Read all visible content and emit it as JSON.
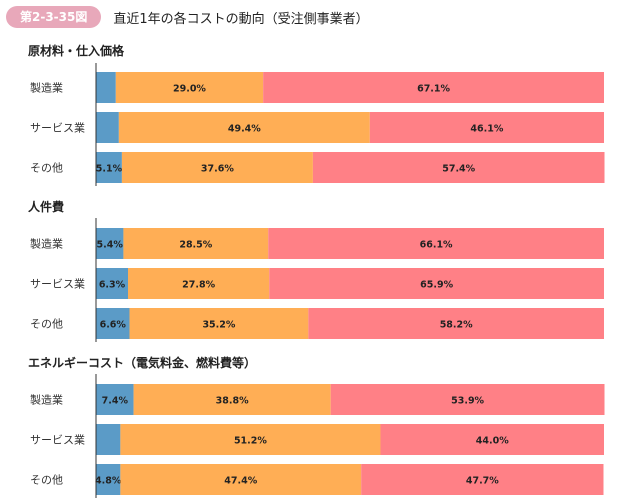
{
  "figure": {
    "badge": "第2-3-35図",
    "title": "直近1年の各コストの動向（受注側事業者）"
  },
  "colors": {
    "segment_1": "#5b9bc7",
    "segment_2": "#ffae55",
    "segment_3": "#ff8086",
    "badge": "#e8a8ba",
    "axis": "#333333"
  },
  "chart_data": [
    {
      "type": "bar",
      "stacked": true,
      "orientation": "horizontal",
      "title": "原材料・仕入価格",
      "categories": [
        "製造業",
        "サービス業",
        "その他"
      ],
      "series": [
        {
          "values": [
            3.9,
            4.5,
            5.1
          ],
          "labels": [
            "",
            "",
            "5.1%"
          ]
        },
        {
          "values": [
            29.0,
            49.4,
            37.6
          ],
          "labels": [
            "29.0%",
            "49.4%",
            "37.6%"
          ]
        },
        {
          "values": [
            67.1,
            46.1,
            57.4
          ],
          "labels": [
            "67.1%",
            "46.1%",
            "57.4%"
          ]
        }
      ],
      "xlim": [
        0,
        100
      ]
    },
    {
      "type": "bar",
      "stacked": true,
      "orientation": "horizontal",
      "title": "人件費",
      "categories": [
        "製造業",
        "サービス業",
        "その他"
      ],
      "series": [
        {
          "values": [
            5.4,
            6.3,
            6.6
          ],
          "labels": [
            "5.4%",
            "6.3%",
            "6.6%"
          ]
        },
        {
          "values": [
            28.5,
            27.8,
            35.2
          ],
          "labels": [
            "28.5%",
            "27.8%",
            "35.2%"
          ]
        },
        {
          "values": [
            66.1,
            65.9,
            58.2
          ],
          "labels": [
            "66.1%",
            "65.9%",
            "58.2%"
          ]
        }
      ],
      "xlim": [
        0,
        100
      ]
    },
    {
      "type": "bar",
      "stacked": true,
      "orientation": "horizontal",
      "title": "エネルギーコスト（電気料金、燃料費等）",
      "categories": [
        "製造業",
        "サービス業",
        "その他"
      ],
      "series": [
        {
          "values": [
            7.4,
            4.8,
            4.8
          ],
          "labels": [
            "7.4%",
            "",
            "4.8%"
          ]
        },
        {
          "values": [
            38.8,
            51.2,
            47.4
          ],
          "labels": [
            "38.8%",
            "51.2%",
            "47.4%"
          ]
        },
        {
          "values": [
            53.9,
            44.0,
            47.7
          ],
          "labels": [
            "53.9%",
            "44.0%",
            "47.7%"
          ]
        }
      ],
      "xlim": [
        0,
        100
      ]
    }
  ]
}
